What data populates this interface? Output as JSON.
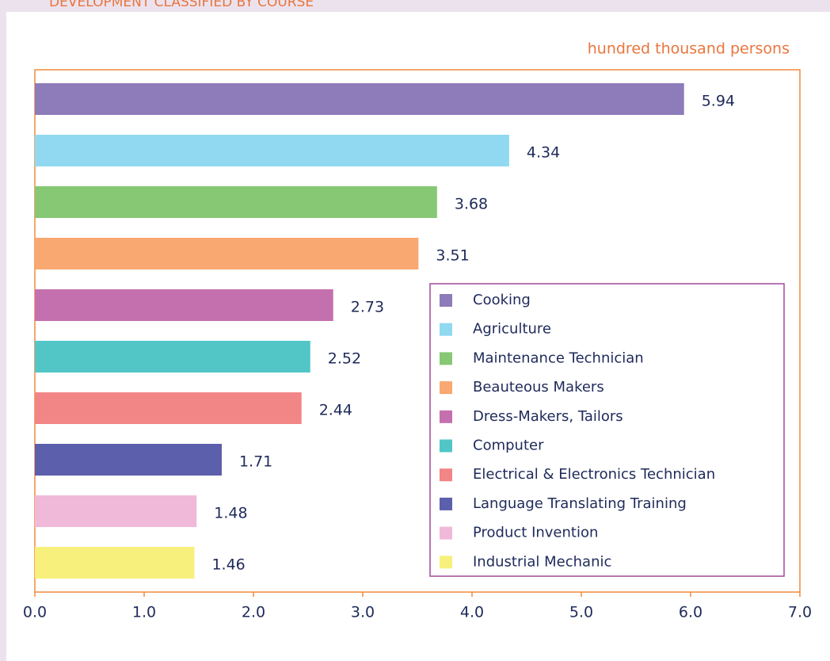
{
  "chart_data": {
    "type": "bar",
    "orientation": "horizontal",
    "title": "DEVELOPMENT CLASSIFIED BY COURSE",
    "unit_label": "hundred thousand persons",
    "categories": [
      "Cooking",
      "Agriculture",
      "Maintenance Technician",
      "Beauteous Makers",
      "Dress-Makers, Tailors",
      "Computer",
      "Electrical & Electronics Technician",
      "Language Translating Training",
      "Product Invention",
      "Industrial Mechanic"
    ],
    "values": [
      5.94,
      4.34,
      3.68,
      3.51,
      2.73,
      2.52,
      2.44,
      1.71,
      1.48,
      1.46
    ],
    "colors": [
      "#8e7bb9",
      "#90d9f1",
      "#86c873",
      "#f8a870",
      "#c470ae",
      "#52c6c7",
      "#f28585",
      "#5c5fab",
      "#f1b9d9",
      "#f8f07c"
    ],
    "xlim": [
      0,
      7
    ],
    "xticks": [
      {
        "value": 0,
        "label": "0.0"
      },
      {
        "value": 1,
        "label": "1.0"
      },
      {
        "value": 2,
        "label": "2.0"
      },
      {
        "value": 3,
        "label": "3.0"
      },
      {
        "value": 4,
        "label": "4.0"
      },
      {
        "value": 5,
        "label": "5.0"
      },
      {
        "value": 6,
        "label": "6.0"
      },
      {
        "value": 7,
        "label": "7.0"
      }
    ],
    "legend": "lower right"
  }
}
